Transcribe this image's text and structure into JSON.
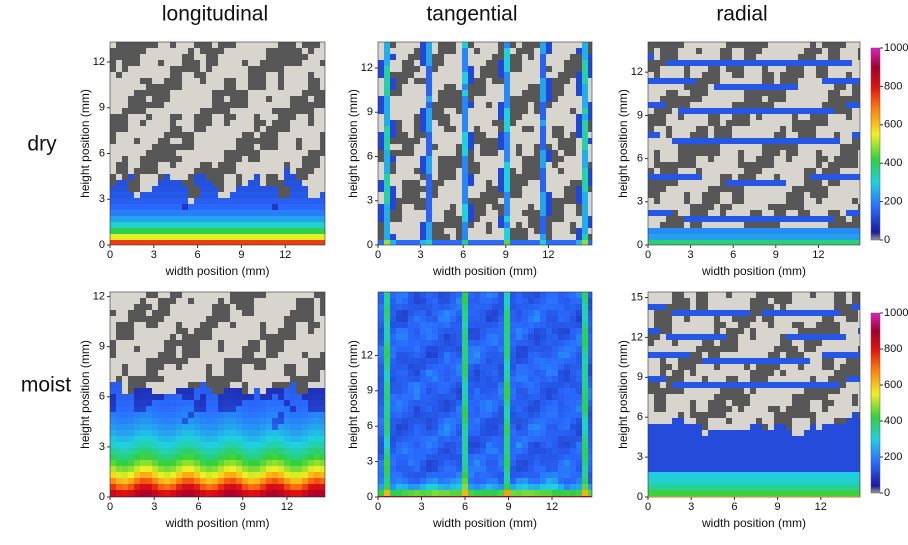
{
  "columns": [
    "longitudinal",
    "tangential",
    "radial"
  ],
  "rows": [
    "dry",
    "moist"
  ],
  "panels": [
    {
      "xlabel": "width position  (mm)",
      "ylabel": "height position (mm)",
      "xticks": [
        0,
        3,
        6,
        9,
        12
      ],
      "yticks": [
        0,
        3,
        6,
        9,
        12
      ]
    },
    {
      "xlabel": "width position  (mm)",
      "ylabel": "height position (mm)",
      "xticks": [
        0,
        3,
        6,
        9,
        12
      ],
      "yticks": [
        0,
        3,
        6,
        9,
        12
      ]
    },
    {
      "xlabel": "width position  (mm)",
      "ylabel": "height position (mm)",
      "xticks": [
        0,
        3,
        6,
        9,
        12
      ],
      "yticks": [
        0,
        3,
        6,
        9,
        12
      ]
    },
    {
      "xlabel": "width position  (mm)",
      "ylabel": "height position (mm)",
      "xticks": [
        0,
        3,
        6,
        9,
        12
      ],
      "yticks": [
        0,
        3,
        6,
        9,
        12
      ]
    },
    {
      "xlabel": "width position  (mm)",
      "ylabel": "height position (mm)",
      "xticks": [
        0,
        3,
        6,
        9,
        12
      ],
      "yticks": [
        0,
        3,
        6,
        9,
        12
      ]
    },
    {
      "xlabel": "width position  (mm)",
      "ylabel": "height position (mm)",
      "xticks": [
        0,
        3,
        6,
        9,
        12
      ],
      "yticks": [
        0,
        3,
        6,
        9,
        12,
        15
      ]
    }
  ],
  "colorbars": [
    {
      "ticks": [
        0,
        200,
        400,
        600,
        800,
        1000
      ]
    },
    {
      "ticks": [
        0,
        200,
        400,
        600,
        800,
        1000
      ]
    }
  ]
}
